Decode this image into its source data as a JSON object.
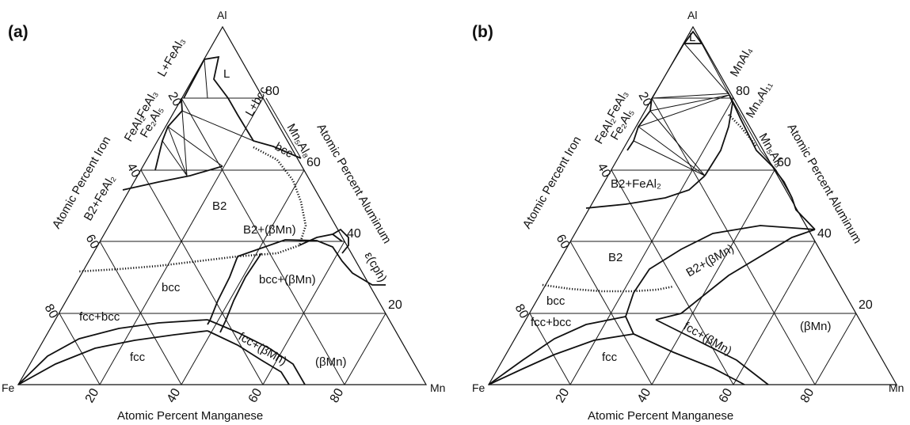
{
  "panel_a": {
    "letter": "(a)",
    "vertices": {
      "top": "Al",
      "left": "Fe",
      "right": "Mn"
    },
    "bottom_axis": "Atomic Percent Manganese",
    "left_axis": "Atomic Percent Iron",
    "right_axis": "Atomic Percent Aluminum",
    "bottom_ticks": [
      "20",
      "40",
      "60",
      "80"
    ],
    "left_ticks": [
      "20",
      "40",
      "60",
      "80"
    ],
    "right_ticks": [
      "80",
      "60",
      "40",
      "20"
    ],
    "labels": {
      "L_FeAl3": "L+FeAl₃",
      "L": "L",
      "FeAl3": "FeAl₃",
      "Fe2Al5": "Fe₂Al₅",
      "FeAl2": "FeAl₂",
      "L_bcc": "L+bcc",
      "Mn5Al8": "Mn₅Al₈",
      "bcc_top": "bcc",
      "B2_FeAl2": "B2+FeAl₂",
      "B2": "B2",
      "B2_bMn": "B2+(βMn)",
      "eps": "ε(cph)",
      "bcc": "bcc",
      "bcc_bMn": "bcc+(βMn)",
      "fcc_bcc": "fcc+bcc",
      "fcc": "fcc",
      "fcc_bMn": "fcc+(βMn)",
      "bMn": "(βMn)"
    }
  },
  "panel_b": {
    "letter": "(b)",
    "vertices": {
      "top": "Al",
      "left": "Fe",
      "right": "Mn"
    },
    "bottom_axis": "Atomic Percent Manganese",
    "left_axis": "Atomic Percent Iron",
    "right_axis": "Atomic Percent Aluminum",
    "bottom_ticks": [
      "20",
      "40",
      "60",
      "80"
    ],
    "left_ticks": [
      "20",
      "40",
      "60",
      "80"
    ],
    "right_ticks": [
      "80",
      "60",
      "40",
      "20"
    ],
    "labels": {
      "L": "L",
      "MnAl4": "MnAl₄",
      "FeAl3": "FeAl₃",
      "Mn4Al11": "Mn₄Al₁₁",
      "Fe2Al5": "Fe₂Al₅",
      "FeAl2": "FeAl₂",
      "Mn5Al8": "Mn₅Al₈",
      "B2_FeAl2": "B2+FeAl₂",
      "B2": "B2",
      "B2_bMn": "B2+(βMn)",
      "bcc": "bcc",
      "fcc_bcc": "fcc+bcc",
      "fcc": "fcc",
      "fcc_bMn": "fcc+(βMn)",
      "bMn": "(βMn)"
    }
  }
}
